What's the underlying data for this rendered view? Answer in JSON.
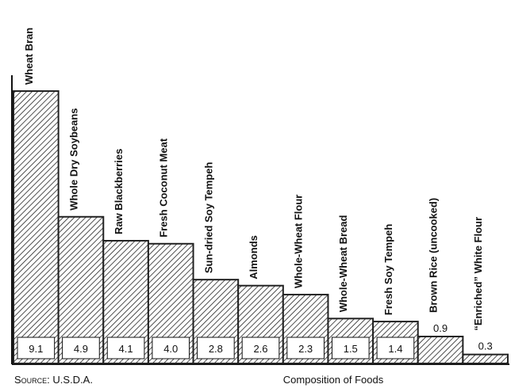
{
  "chart_data": {
    "type": "bar",
    "categories": [
      "Wheat Bran",
      "Whole Dry Soybeans",
      "Raw Blackberries",
      "Fresh Coconut Meat",
      "Sun-dried Soy Tempeh",
      "Almonds",
      "Whole-Wheat Flour",
      "Whole-Wheat Bread",
      "Fresh Soy Tempeh",
      "Brown Rice (uncooked)",
      "“Enriched” White Flour"
    ],
    "values": [
      9.1,
      4.9,
      4.1,
      4.0,
      2.8,
      2.6,
      2.3,
      1.5,
      1.4,
      0.9,
      0.3
    ],
    "value_labels": [
      "9.1",
      "4.9",
      "4.1",
      "4.0",
      "2.8",
      "2.6",
      "2.3",
      "1.5",
      "1.4",
      "0.9",
      "0.3"
    ],
    "color": "#222222",
    "source": "Source: U.S.D.A.",
    "caption": "Composition of Foods"
  }
}
